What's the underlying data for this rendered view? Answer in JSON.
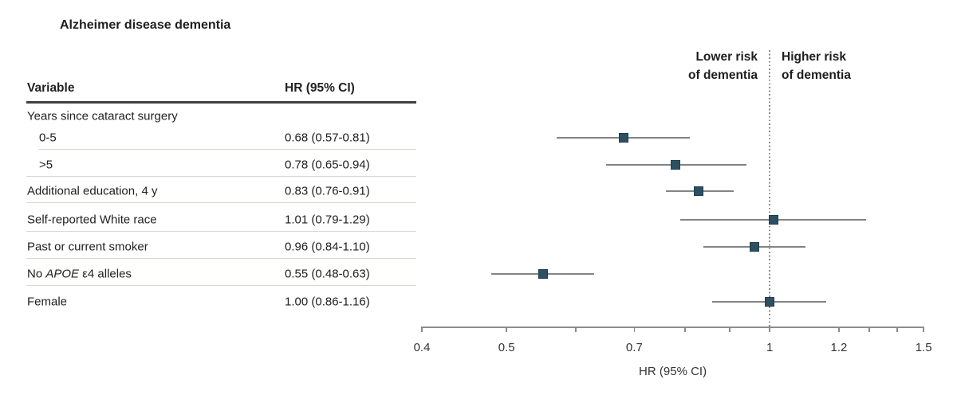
{
  "title": "Alzheimer disease dementia",
  "table": {
    "columns": {
      "variable": "Variable",
      "hr": "HR (95% CI)"
    }
  },
  "plot": {
    "left_region_label": [
      "Lower risk",
      "of dementia"
    ],
    "right_region_label": [
      "Higher risk",
      "of dementia"
    ]
  },
  "chart_data": {
    "type": "scatter",
    "subtype": "forest-plot",
    "title": "Alzheimer disease dementia",
    "xlabel": "HR (95% CI)",
    "x_scale": "log",
    "xlim": [
      0.4,
      1.5
    ],
    "x_tick_values": [
      0.4,
      0.5,
      0.7,
      1,
      1.2,
      1.5
    ],
    "x_tick_labels": [
      "0.4",
      "0.5",
      "0.7",
      "1",
      "1.2",
      "1.5"
    ],
    "x_minor_ticks": [
      0.6,
      0.8,
      0.9,
      1.3,
      1.4
    ],
    "reference_line_x": 1,
    "region_labels": {
      "left_of_reference": "Lower risk of dementia",
      "right_of_reference": "Higher risk of dementia"
    },
    "group_label": "Years since cataract surgery",
    "rows": [
      {
        "parts": [
          {
            "text": "0-5"
          }
        ],
        "indent": true,
        "hr": 0.68,
        "lo": 0.57,
        "hi": 0.81,
        "display": "0.68 (0.57-0.81)"
      },
      {
        "parts": [
          {
            "text": ">5"
          }
        ],
        "indent": true,
        "hr": 0.78,
        "lo": 0.65,
        "hi": 0.94,
        "display": "0.78 (0.65-0.94)"
      },
      {
        "parts": [
          {
            "text": "Additional education, 4 y"
          }
        ],
        "indent": false,
        "hr": 0.83,
        "lo": 0.76,
        "hi": 0.91,
        "display": "0.83 (0.76-0.91)"
      },
      {
        "parts": [
          {
            "text": "Self-reported White race"
          }
        ],
        "indent": false,
        "hr": 1.01,
        "lo": 0.79,
        "hi": 1.29,
        "display": "1.01 (0.79-1.29)"
      },
      {
        "parts": [
          {
            "text": "Past or current smoker"
          }
        ],
        "indent": false,
        "hr": 0.96,
        "lo": 0.84,
        "hi": 1.1,
        "display": "0.96 (0.84-1.10)"
      },
      {
        "parts": [
          {
            "text": "No "
          },
          {
            "text": "APOE",
            "italic": true
          },
          {
            "text": " ε4 alleles"
          }
        ],
        "indent": false,
        "hr": 0.55,
        "lo": 0.48,
        "hi": 0.63,
        "display": "0.55 (0.48-0.63)"
      },
      {
        "parts": [
          {
            "text": "Female"
          }
        ],
        "indent": false,
        "hr": 1.0,
        "lo": 0.86,
        "hi": 1.16,
        "display": "1.00 (0.86-1.16)"
      }
    ],
    "colors": {
      "marker_fill": "#2c5062",
      "marker_border": "#1f3e4d",
      "ci_line": "#848484",
      "axis": "#8c8c8c",
      "reference_line": "#8a8a8a",
      "separator": "#dcd7d0",
      "header_rule": "#3f3f3f",
      "text": "#212121"
    }
  }
}
